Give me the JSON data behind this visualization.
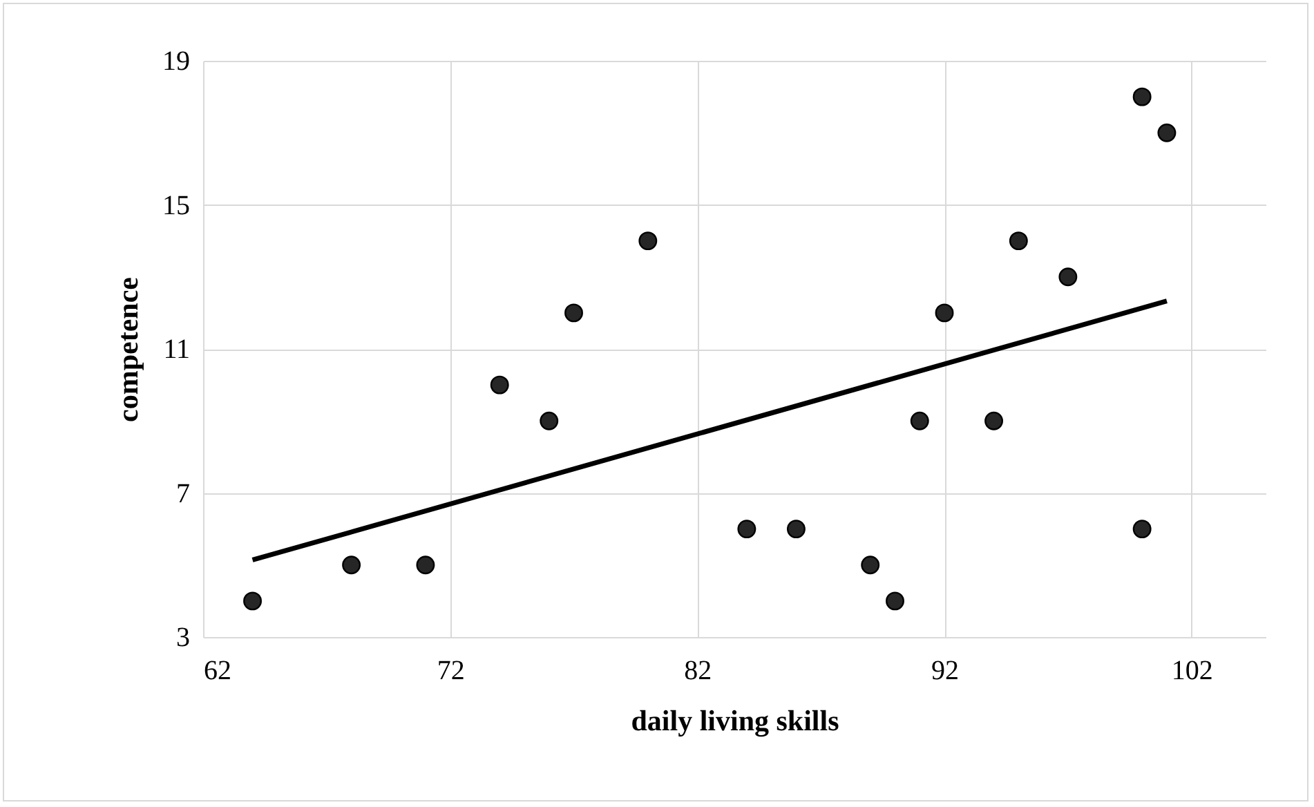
{
  "chart_data": {
    "type": "scatter",
    "xlabel": "daily living skills",
    "ylabel": "competence",
    "xlim": [
      62,
      105
    ],
    "xticks": [
      62,
      72,
      82,
      92,
      102
    ],
    "ylim": [
      3,
      19
    ],
    "yticks": [
      3,
      7,
      11,
      15,
      19
    ],
    "grid": true,
    "series": [
      {
        "marker": "circle",
        "color": "#262626",
        "x": [
          64,
          68,
          71,
          74,
          76,
          77,
          80,
          84,
          86,
          89,
          90,
          91,
          92,
          94,
          95,
          97,
          100,
          101,
          100
        ],
        "values": [
          4,
          5,
          5,
          10,
          9,
          12,
          14,
          6,
          6,
          5,
          4,
          9,
          12,
          9,
          14,
          13,
          18,
          17,
          6
        ]
      },
      {
        "type": "line",
        "marker": "none",
        "color": "#000000",
        "x": [
          64,
          101
        ],
        "values": [
          5.14,
          12.33
        ]
      }
    ]
  }
}
